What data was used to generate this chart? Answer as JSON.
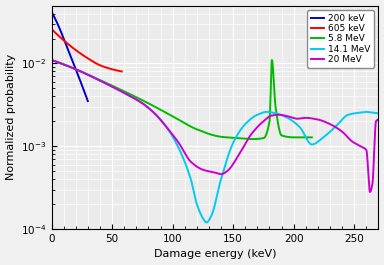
{
  "title": "",
  "xlabel": "Damage energy (keV)",
  "ylabel": "Normalized probability",
  "xlim": [
    0,
    270
  ],
  "legend_labels": [
    "200 keV",
    "605 keV",
    "5.8 MeV",
    "14.1 MeV",
    "20 MeV"
  ],
  "colors": [
    "#0000cc",
    "#ff0000",
    "#00bb00",
    "#00ccee",
    "#cc00cc"
  ],
  "background_color": "#ebebeb",
  "grid_color": "#ffffff",
  "linewidth": 1.4
}
